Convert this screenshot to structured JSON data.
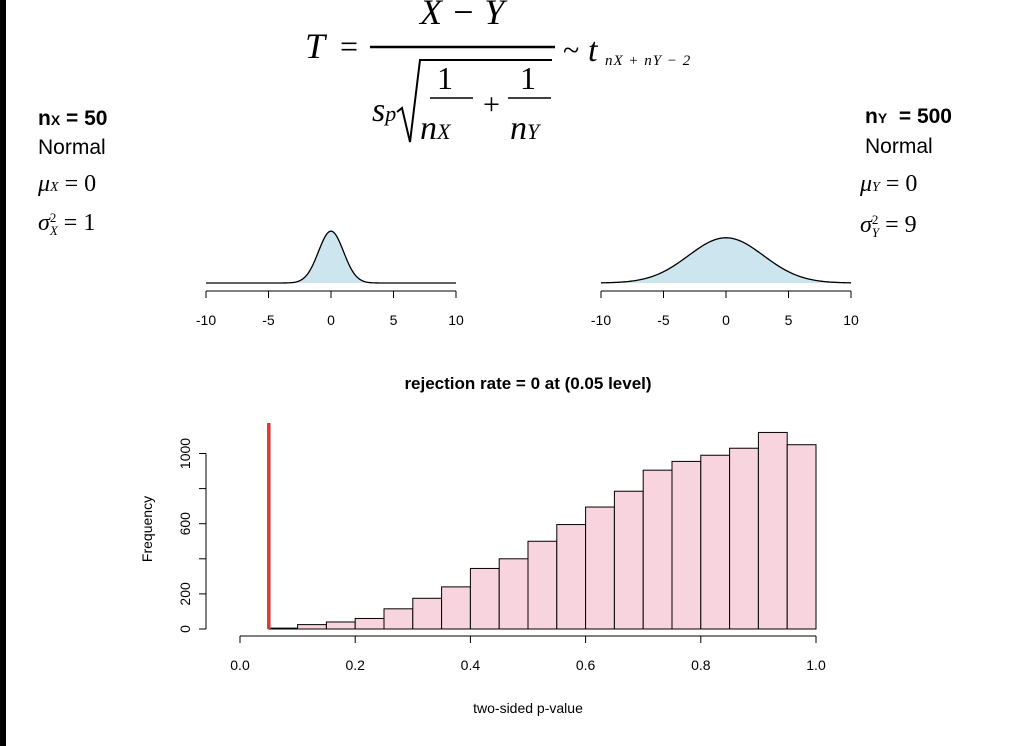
{
  "formula": {
    "lhs": "T",
    "eq": "=",
    "numerator": "X − Y",
    "sp": "s",
    "sp_sub": "p",
    "one": "1",
    "plus": "+",
    "nx": "n",
    "nx_sub": "X",
    "ny": "n",
    "ny_sub": "Y",
    "tilde": "~",
    "t": "t",
    "df_text": "nX + nY − 2"
  },
  "left_group": {
    "n_main": "n",
    "n_sub": "X",
    "n_rest": " = 50",
    "dist": "Normal",
    "mu_sym": "μ",
    "mu_sub": "X",
    "mu_val": " = 0",
    "sigma_sym": "σ",
    "sigma_sup": "2",
    "sigma_sub": "X",
    "sigma_val": " = 1"
  },
  "right_group": {
    "n_main": "n",
    "n_sub": "Y",
    "n_rest": "  = 500",
    "dist": "Normal",
    "mu_sym": "μ",
    "mu_sub": "Y",
    "mu_val": " = 0",
    "sigma_sym": "σ",
    "sigma_sup": "2",
    "sigma_sub": "Y",
    "sigma_val": " = 9"
  },
  "colors": {
    "density_fill": "#cde5ef",
    "hist_fill": "#f8d5de",
    "cutoff_line": "#d93a35"
  },
  "chart_data": [
    {
      "type": "area",
      "distribution": "Normal",
      "mean": 0,
      "variance": 1,
      "xlim": [
        -10,
        10
      ],
      "xticks": [
        "-10",
        "-5",
        "0",
        "5",
        "10"
      ]
    },
    {
      "type": "area",
      "distribution": "Normal",
      "mean": 0,
      "variance": 9,
      "xlim": [
        -10,
        10
      ],
      "xticks": [
        "-10",
        "-5",
        "0",
        "5",
        "10"
      ]
    },
    {
      "type": "bar",
      "title": "rejection rate = 0 at (0.05 level)",
      "xlabel": "two-sided p-value",
      "ylabel": "Frequency",
      "xlim": [
        0,
        1
      ],
      "ylim": [
        0,
        1100
      ],
      "xticks": [
        "0.0",
        "0.2",
        "0.4",
        "0.6",
        "0.8",
        "1.0"
      ],
      "yticks": [
        "0",
        "200",
        "600",
        "1000"
      ],
      "bin_edges": [
        0.05,
        0.1,
        0.15,
        0.2,
        0.25,
        0.3,
        0.35,
        0.4,
        0.45,
        0.5,
        0.55,
        0.6,
        0.65,
        0.7,
        0.75,
        0.8,
        0.85,
        0.9,
        0.95,
        1.0
      ],
      "values": [
        5,
        25,
        40,
        60,
        115,
        175,
        240,
        345,
        400,
        500,
        595,
        695,
        785,
        905,
        955,
        990,
        1030,
        1120,
        1050
      ],
      "cutoff": 0.05
    }
  ]
}
